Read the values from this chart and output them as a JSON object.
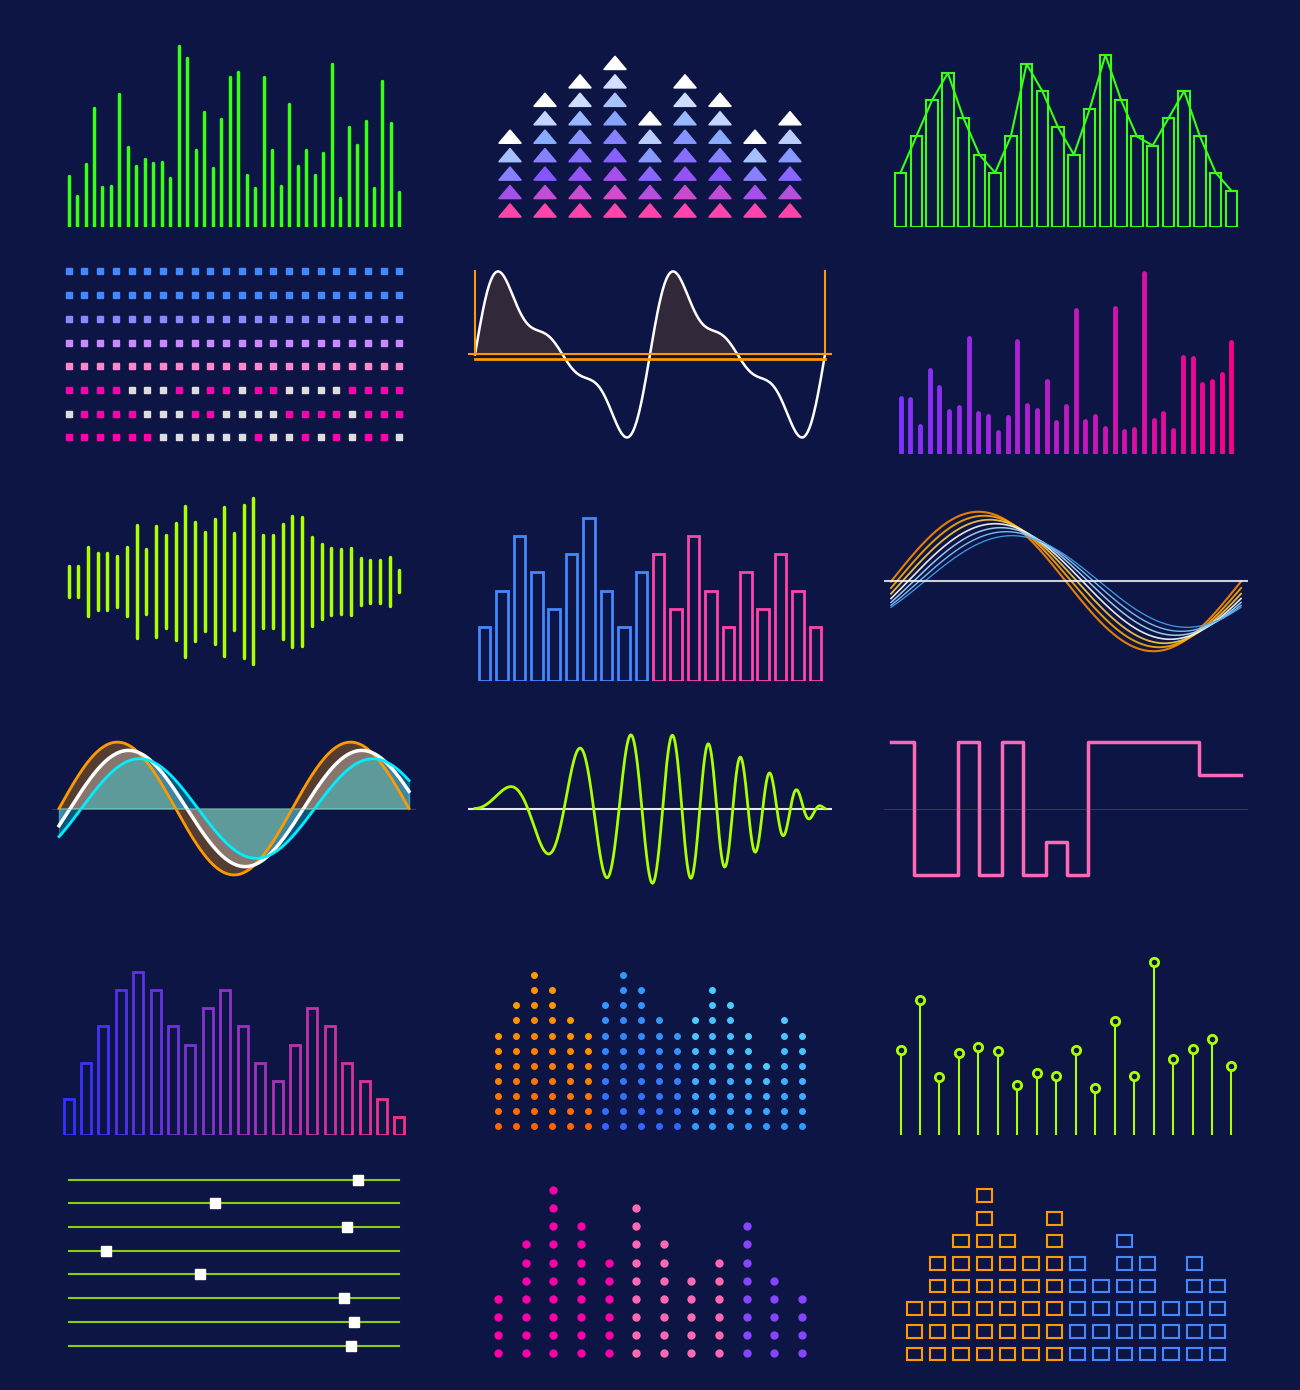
{
  "bg_color": "#0d1545",
  "green": "#39ff14",
  "lime": "#aaff00",
  "cyan": "#00eeff",
  "magenta": "#ff00aa",
  "pink": "#ff69b4",
  "orange": "#ff9900",
  "white": "#ffffff",
  "blue": "#4488ff",
  "purple": "#aa44ff",
  "yellow_green": "#ccff00"
}
